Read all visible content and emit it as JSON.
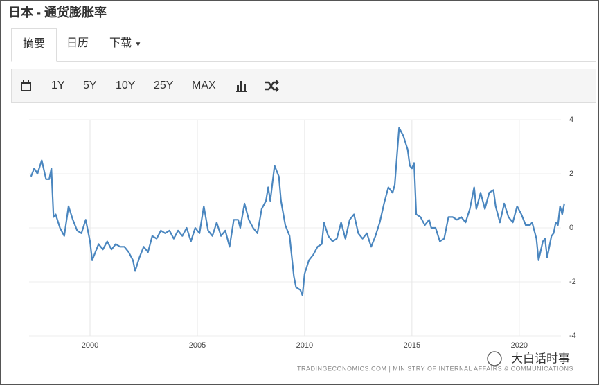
{
  "header": {
    "title": "日本 - 通货膨胀率"
  },
  "tabs": [
    "摘要",
    "日历",
    "下载"
  ],
  "toolbar": [
    "1Y",
    "5Y",
    "10Y",
    "25Y",
    "MAX"
  ],
  "source": "TRADINGECONOMICS.COM  |  MINISTRY OF INTERNAL AFFAIRS & COMMUNICATIONS",
  "watermark": "大白话时事",
  "chart_data": {
    "type": "line",
    "color": "#4a86bf",
    "grid": true,
    "xlim": [
      1997.16,
      2022.2
    ],
    "xticks": [
      2000,
      2005,
      2010,
      2015,
      2020
    ],
    "ylim": [
      -4,
      4
    ],
    "yticks": [
      -4,
      -2,
      0,
      2,
      4
    ],
    "x": [
      1997.25,
      1997.4,
      1997.55,
      1997.75,
      1997.95,
      1998.1,
      1998.2,
      1998.3,
      1998.4,
      1998.6,
      1998.8,
      1999.0,
      1999.2,
      1999.4,
      1999.6,
      1999.8,
      2000.0,
      2000.1,
      2000.4,
      2000.6,
      2000.8,
      2001.0,
      2001.2,
      2001.4,
      2001.6,
      2001.8,
      2002.0,
      2002.1,
      2002.3,
      2002.5,
      2002.7,
      2002.9,
      2003.1,
      2003.3,
      2003.5,
      2003.7,
      2003.9,
      2004.1,
      2004.3,
      2004.5,
      2004.7,
      2004.9,
      2005.1,
      2005.3,
      2005.5,
      2005.7,
      2005.9,
      2006.1,
      2006.3,
      2006.5,
      2006.7,
      2006.9,
      2007.0,
      2007.2,
      2007.4,
      2007.6,
      2007.8,
      2008.0,
      2008.2,
      2008.3,
      2008.4,
      2008.6,
      2008.8,
      2008.9,
      2009.1,
      2009.3,
      2009.5,
      2009.6,
      2009.8,
      2009.9,
      2010.0,
      2010.2,
      2010.4,
      2010.6,
      2010.8,
      2010.9,
      2011.1,
      2011.3,
      2011.5,
      2011.7,
      2011.9,
      2012.1,
      2012.3,
      2012.5,
      2012.7,
      2012.9,
      2013.1,
      2013.3,
      2013.5,
      2013.7,
      2013.9,
      2014.1,
      2014.2,
      2014.4,
      2014.6,
      2014.8,
      2014.9,
      2015.0,
      2015.1,
      2015.2,
      2015.4,
      2015.6,
      2015.8,
      2015.9,
      2016.1,
      2016.3,
      2016.5,
      2016.7,
      2016.9,
      2017.1,
      2017.3,
      2017.5,
      2017.7,
      2017.9,
      2018.0,
      2018.2,
      2018.4,
      2018.6,
      2018.8,
      2018.9,
      2019.1,
      2019.3,
      2019.5,
      2019.7,
      2019.9,
      2020.1,
      2020.3,
      2020.5,
      2020.6,
      2020.8,
      2020.9,
      2021.1,
      2021.2,
      2021.3,
      2021.5,
      2021.6,
      2021.7,
      2021.8,
      2021.9,
      2022.0,
      2022.1
    ],
    "values": [
      1.9,
      2.2,
      2.0,
      2.5,
      1.8,
      1.8,
      2.2,
      0.4,
      0.5,
      0.0,
      -0.3,
      0.8,
      0.3,
      -0.1,
      -0.2,
      0.3,
      -0.5,
      -1.2,
      -0.6,
      -0.8,
      -0.5,
      -0.8,
      -0.6,
      -0.7,
      -0.7,
      -0.9,
      -1.2,
      -1.6,
      -1.1,
      -0.7,
      -0.9,
      -0.3,
      -0.4,
      -0.1,
      -0.2,
      -0.1,
      -0.4,
      -0.1,
      -0.3,
      0.0,
      -0.5,
      0.0,
      -0.2,
      0.8,
      -0.1,
      -0.3,
      0.2,
      -0.3,
      -0.1,
      -0.7,
      0.3,
      0.3,
      0.0,
      0.9,
      0.3,
      0.0,
      -0.2,
      0.7,
      1.0,
      1.5,
      1.0,
      2.3,
      1.9,
      1.0,
      0.1,
      -0.3,
      -1.8,
      -2.2,
      -2.3,
      -2.5,
      -1.7,
      -1.2,
      -1.0,
      -0.7,
      -0.6,
      0.2,
      -0.3,
      -0.5,
      -0.4,
      0.2,
      -0.4,
      0.3,
      0.5,
      -0.2,
      -0.4,
      -0.2,
      -0.7,
      -0.3,
      0.2,
      0.9,
      1.5,
      1.3,
      1.6,
      3.7,
      3.4,
      2.9,
      2.3,
      2.2,
      2.4,
      0.5,
      0.4,
      0.1,
      0.3,
      0.0,
      0.0,
      -0.5,
      -0.4,
      0.4,
      0.4,
      0.3,
      0.4,
      0.2,
      0.7,
      1.5,
      0.7,
      1.3,
      0.7,
      1.3,
      1.4,
      0.8,
      0.2,
      0.9,
      0.4,
      0.2,
      0.8,
      0.5,
      0.1,
      0.1,
      0.2,
      -0.4,
      -1.2,
      -0.5,
      -0.4,
      -1.1,
      -0.3,
      -0.2,
      0.2,
      0.1,
      0.8,
      0.5,
      0.9
    ]
  }
}
